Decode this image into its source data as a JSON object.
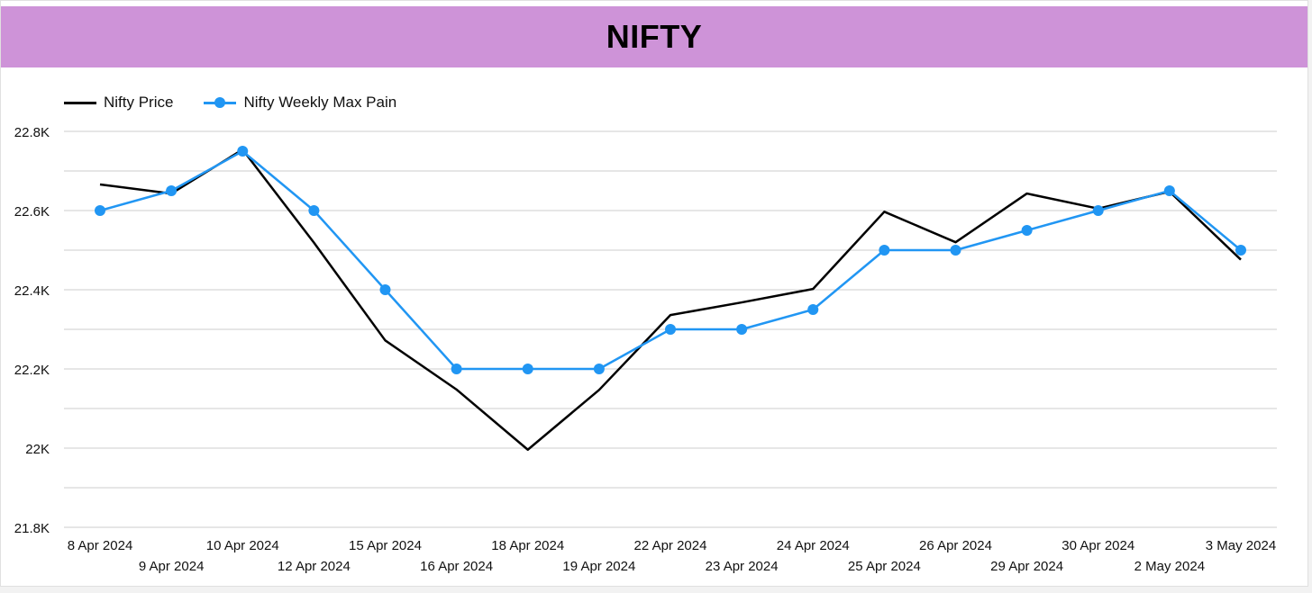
{
  "header": {
    "title": "NIFTY"
  },
  "colors": {
    "title_bg": "#ce93d8",
    "price": "#000000",
    "max_pain": "#2196f3",
    "grid": "#cccccc"
  },
  "chart_data": {
    "type": "line",
    "title": "NIFTY",
    "x": [
      "8 Apr 2024",
      "9 Apr 2024",
      "10 Apr 2024",
      "12 Apr 2024",
      "15 Apr 2024",
      "16 Apr 2024",
      "18 Apr 2024",
      "19 Apr 2024",
      "22 Apr 2024",
      "23 Apr 2024",
      "24 Apr 2024",
      "25 Apr 2024",
      "26 Apr 2024",
      "29 Apr 2024",
      "30 Apr 2024",
      "2 May 2024",
      "3 May 2024"
    ],
    "series": [
      {
        "name": "Nifty Price",
        "values": [
          22666,
          22643,
          22754,
          22519,
          22272,
          22148,
          21996,
          22147,
          22336,
          22368,
          22402,
          22597,
          22520,
          22643,
          22605,
          22648,
          22476
        ],
        "markers": false
      },
      {
        "name": "Nifty Weekly Max Pain",
        "values": [
          22600,
          22650,
          22750,
          22600,
          22400,
          22200,
          22200,
          22200,
          22300,
          22300,
          22350,
          22500,
          22500,
          22550,
          22600,
          22650,
          22500
        ],
        "markers": true
      }
    ],
    "ylim": [
      21800,
      22800
    ],
    "yticks": [
      21800,
      22000,
      22200,
      22400,
      22600,
      22800
    ],
    "ytick_labels": [
      "21.8K",
      "22K",
      "22.2K",
      "22.4K",
      "22.6K",
      "22.8K"
    ],
    "grid": true,
    "legend": "top-left",
    "xlabel": "",
    "ylabel": ""
  }
}
